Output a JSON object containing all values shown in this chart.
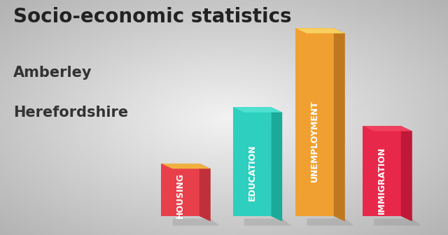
{
  "title_line1": "Socio-economic statistics",
  "title_line2": "Amberley",
  "title_line3": "Herefordshire",
  "categories": [
    "HOUSING",
    "EDUCATION",
    "UNEMPLOYMENT",
    "IMMIGRATION"
  ],
  "values": [
    0.28,
    0.58,
    1.0,
    0.48
  ],
  "bar_front_colors": [
    "#e8404a",
    "#2ecfbe",
    "#f0a030",
    "#e8284a"
  ],
  "bar_side_colors": [
    "#c0303a",
    "#1aaa9a",
    "#c07820",
    "#c01838"
  ],
  "bar_top_colors": [
    "#f0b040",
    "#50e0d0",
    "#f8d060",
    "#f04060"
  ],
  "background_color": "#c8c8c8",
  "title_fontsize": 20,
  "subtitle_fontsize": 15,
  "label_fontsize": 9
}
